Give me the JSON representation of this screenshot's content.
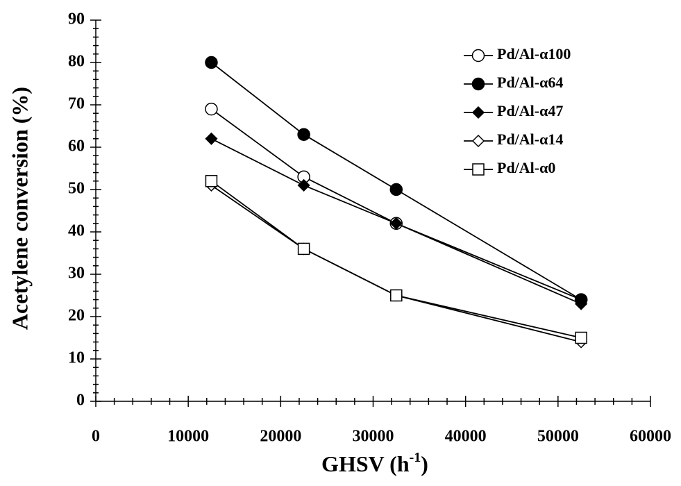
{
  "chart_data": {
    "type": "line",
    "x_label_parts": [
      "GHSV (h",
      "-1",
      ")"
    ],
    "y_label": "Acetylene conversion (%)",
    "x": [
      12500,
      22500,
      32500,
      52500
    ],
    "series": [
      {
        "name": "Pd/Al-α100",
        "color": "#000000",
        "marker": "circle",
        "marker_fill": "#ffffff",
        "values": [
          69,
          53,
          42,
          24
        ]
      },
      {
        "name": "Pd/Al-α64",
        "color": "#000000",
        "marker": "circle",
        "marker_fill": "#000000",
        "values": [
          80,
          63,
          50,
          24
        ]
      },
      {
        "name": "Pd/Al-α47",
        "color": "#000000",
        "marker": "diamond",
        "marker_fill": "#000000",
        "values": [
          62,
          51,
          42,
          23
        ]
      },
      {
        "name": "Pd/Al-α14",
        "color": "#000000",
        "marker": "diamond",
        "marker_fill": "#ffffff",
        "values": [
          51,
          36,
          25,
          14
        ]
      },
      {
        "name": "Pd/Al-α0",
        "color": "#000000",
        "marker": "square",
        "marker_fill": "#ffffff",
        "values": [
          52,
          36,
          25,
          15
        ]
      }
    ],
    "xlim": [
      0,
      60000
    ],
    "xticks": [
      0,
      10000,
      20000,
      30000,
      40000,
      50000,
      60000
    ],
    "ylim": [
      0,
      90
    ],
    "yticks": [
      0,
      10,
      20,
      30,
      40,
      50,
      60,
      70,
      80,
      90
    ],
    "grid": false,
    "legend": "upper right"
  }
}
